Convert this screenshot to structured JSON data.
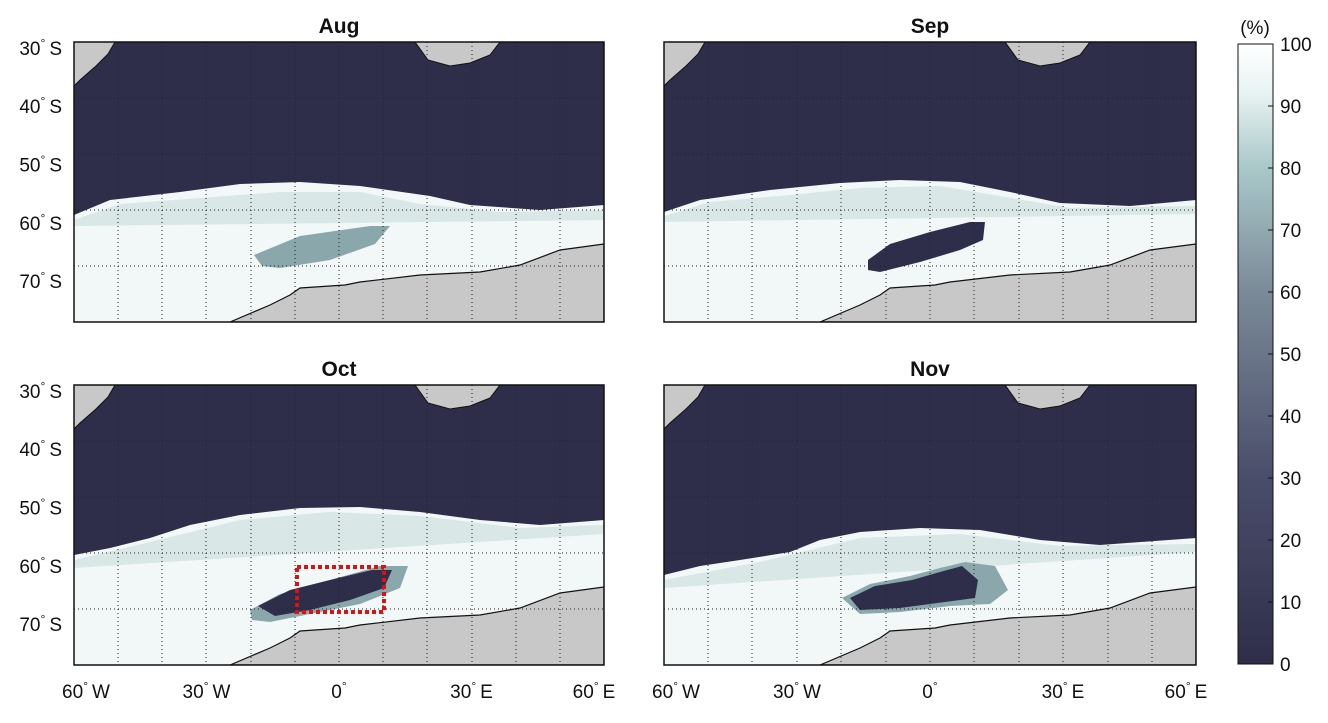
{
  "panels": [
    {
      "title": "Aug"
    },
    {
      "title": "Sep"
    },
    {
      "title": "Oct"
    },
    {
      "title": "Nov"
    }
  ],
  "lat_ticks": [
    {
      "value": -30,
      "label": "30",
      "hemi": "S"
    },
    {
      "value": -40,
      "label": "40",
      "hemi": "S"
    },
    {
      "value": -50,
      "label": "50",
      "hemi": "S"
    },
    {
      "value": -60,
      "label": "60",
      "hemi": "S"
    },
    {
      "value": -70,
      "label": "70",
      "hemi": "S"
    }
  ],
  "lon_ticks": [
    {
      "value": -60,
      "label": "60",
      "hemi": "W"
    },
    {
      "value": -30,
      "label": "30",
      "hemi": "W"
    },
    {
      "value": 0,
      "label": "0",
      "hemi": ""
    },
    {
      "value": 30,
      "label": "30",
      "hemi": "E"
    },
    {
      "value": 60,
      "label": "60",
      "hemi": "E"
    }
  ],
  "colorbar": {
    "unit": "(%)",
    "ticks": [
      0,
      10,
      20,
      30,
      40,
      50,
      60,
      70,
      80,
      90,
      100
    ],
    "colors": [
      "#2e2e4a",
      "#7a8a98",
      "#a9c8c8",
      "#e8f2f2",
      "#ffffff"
    ]
  },
  "colors": {
    "ocean_open": "#2e2e4a",
    "land": "#c8c8c8",
    "highlight_box": "#dd1111"
  },
  "highlight_box": {
    "panel": 2,
    "lon": [
      -10,
      10
    ],
    "lat": [
      -68,
      -62
    ]
  },
  "map_extent": {
    "lon": [
      -60,
      60
    ],
    "lat": [
      -77,
      -29
    ]
  }
}
